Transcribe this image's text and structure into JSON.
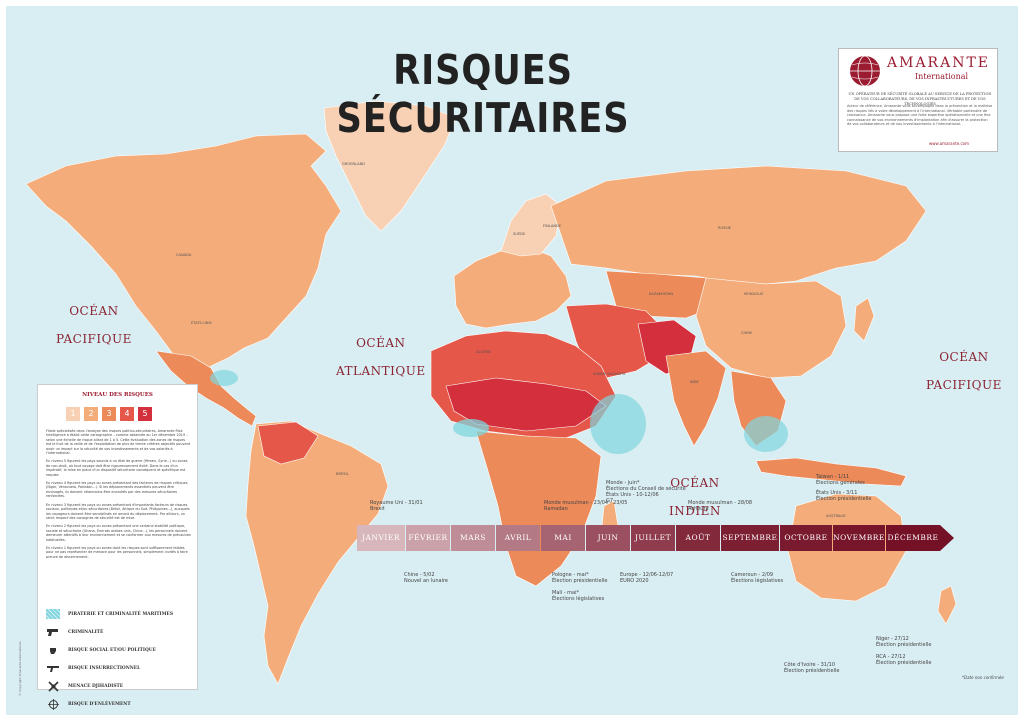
{
  "title": "RISQUES SÉCURITAIRES",
  "brand": {
    "name": "AMARANTE",
    "sub": "International",
    "tagline": "UN OPÉRATEUR DE SÉCURITÉ GLOBALE AU SERVICE DE LA PROTECTION DE VOS COLLABORATEURS, DE VOS INFRASTRUCTURES ET DE VOS TECHNOLOGIES",
    "description": "Acteur de référence, Amarante vous accompagne dans la prévention et la maîtrise des risques liés à votre développement à l'international. Véritable partenaire de croissance, Amarante vous propose une forte expertise opérationnelle et une fine connaissance de vos environnements d'implantation afin d'assurer la protection de vos collaborateurs et de vos investissements à l'international.",
    "url": "www.amarante.com",
    "colors": {
      "brand": "#9b1c31"
    }
  },
  "oceans": {
    "pacific_left_1": "OCÉAN",
    "pacific_left_2": "PACIFIQUE",
    "atlantic_1": "OCÉAN",
    "atlantic_2": "ATLANTIQUE",
    "indian_1": "OCÉAN",
    "indian_2": "INDIEN",
    "pacific_right_1": "OCÉAN",
    "pacific_right_2": "PACIFIQUE"
  },
  "countries": {
    "groenland": "GROENLAND",
    "canada": "CANADA",
    "etats_unis": "ÉTATS-UNIS",
    "russie": "RUSSIE",
    "chine": "CHINE",
    "mongolie": "MONGOLIE",
    "kazakhstan": "KAZAKHSTAN",
    "bresil": "BRÉSIL",
    "australie": "AUSTRALIE",
    "inde": "INDE",
    "algerie": "ALGÉRIE",
    "arabie": "ARABIE SAOUDITE",
    "finlande": "FINLANDE",
    "suede": "SUÈDE"
  },
  "legend": {
    "title": "NIVEAU DES RISQUES",
    "levels": [
      "1",
      "2",
      "3",
      "4",
      "5"
    ],
    "level_colors": [
      "#f8d0b4",
      "#f4ad7a",
      "#ec8a5a",
      "#e55748",
      "#d32f3c"
    ],
    "paragraphs": [
      "Filiale spécialisée dans l'analyse des risques politico-sécuritaires, Amarante Risk Intelligence a établi cette cartographie – comme observée au 1er décembre 2019 – selon une échelle de risque allant de 1 à 5. Cette évaluation des zones de risques est le fruit de la veille et de l'exploitation de plus de trente critères objectifs pouvant avoir un impact sur la sécurité de vos investissements et de vos salariés à l'international.",
      "En niveau 5 figurent les pays soumis à un état de guerre (Yémen, Syrie...) ou zones de non-droit, où tout voyage doit être rigoureusement évité. Dans le cas d'un impératif, la mise en place d'un dispositif sécuritaire conséquent et spécifique est requise.",
      "En niveau 4 figurent les pays ou zones présentant des facteurs de risques critiques (Niger, Venezuela, Pakistan...). Si les déplacements essentiels peuvent être envisagés, ils doivent néanmoins être encadrés par des mesures sécuritaires renforcées.",
      "En niveau 3 figurent les pays ou zones présentant d'importants facteurs de risques sociaux, politiques et/ou sécuritaires (Brésil, Afrique du Sud, Philippines...), auxquels les voyageurs doivent être sensibilisés en amont du déplacement. Par ailleurs, un strict respect des consignes de sécurité est de mise.",
      "En niveau 2 figurent les pays ou zones présentant une certaine stabilité politique, sociale et sécuritaire (Ghana, Émirats arabes unis, Chine...), les personnels doivent demeurer attentifs à leur environnement et se conformer aux mesures de précaution habituelles.",
      "En niveau 1 figurent les pays ou zones dont les risques sont suffisamment faibles pour ne pas représenter de menace pour les personnels, simplement invités à faire preuve de discernement."
    ],
    "items": [
      {
        "icon": "hatch-icon",
        "label": "PIRATERIE ET CRIMINALITÉ MARITIMES"
      },
      {
        "icon": "gun-icon",
        "label": "CRIMINALITÉ"
      },
      {
        "icon": "fist-icon",
        "label": "RISQUE SOCIAL ET/OU POLITIQUE"
      },
      {
        "icon": "rifle-icon",
        "label": "RISQUE INSURRECTIONNEL"
      },
      {
        "icon": "jihad-icon",
        "label": "MENACE DJIHADISTE"
      },
      {
        "icon": "target-icon",
        "label": "RISQUE D'ENLÈVEMENT"
      }
    ]
  },
  "timeline": {
    "months": [
      "JANVIER",
      "FÉVRIER",
      "MARS",
      "AVRIL",
      "MAI",
      "JUIN",
      "JUILLET",
      "AOÛT",
      "SEPTEMBRE",
      "OCTOBRE",
      "NOVEMBRE",
      "DÉCEMBRE"
    ],
    "colors": [
      "#d7b6bc",
      "#cba2aa",
      "#bf8d97",
      "#b37985",
      "#a66472",
      "#9a5060",
      "#8e3c4e",
      "#82293c",
      "#7d1f33",
      "#7a1a2e",
      "#77162a",
      "#741127"
    ],
    "events_top": [
      {
        "lines": [
          "Royaume Uni - 31/01",
          "Brexit"
        ]
      },
      {
        "lines": [
          "Monde musulman - 23/04 - 23/05",
          "Ramadan"
        ]
      },
      {
        "lines": [
          "Monde - juin*",
          "Élections du Conseil de sécurité",
          "États Unis - 10-12/06",
          "G7"
        ]
      },
      {
        "lines": [
          "Monde musulman - 28/08",
          "Achoura"
        ]
      },
      {
        "lines": [
          "Taïwan - 1/11",
          "Élections générales",
          "États Unis - 3/11",
          "Élection présidentielle"
        ]
      }
    ],
    "events_bottom": [
      {
        "lines": [
          "Chine - 5/02",
          "Nouvel an lunaire"
        ]
      },
      {
        "lines": [
          "Pologne - mai*",
          "Élection présidentielle",
          "",
          "Mali - mai*",
          "Élections législatives"
        ]
      },
      {
        "lines": [
          "Europe - 12/06-12/07",
          "EURO 2020"
        ]
      },
      {
        "lines": [
          "Cameroun - 2/09",
          "Élections législatives"
        ]
      },
      {
        "lines": [
          "Côte d'Ivoire - 31/10",
          "Élection présidentielle"
        ]
      },
      {
        "lines": [
          "Niger - 27/12",
          "Élection présidentielle",
          "",
          "RCA - 27/12",
          "Élection présidentielle"
        ]
      }
    ],
    "footnote": "*Date non confirmée"
  },
  "copyright": "© Copyright Amarante International"
}
